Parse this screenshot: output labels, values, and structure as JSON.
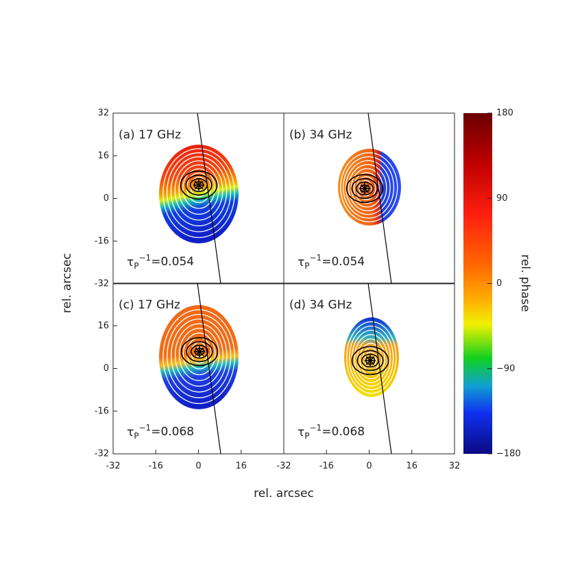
{
  "figure": {
    "xlabel": "rel. arcsec",
    "ylabel": "rel. arcsec"
  },
  "chart_data": [
    {
      "type": "map",
      "panel_label": "(a) 17 GHz",
      "annotation": {
        "symbol": "τ",
        "subscript": "P",
        "superscript": "−1",
        "text": "=0.054"
      },
      "xlim": [
        -32,
        32
      ],
      "ylim": [
        -32,
        32
      ],
      "yticks": [
        -32,
        -16,
        0,
        16,
        32
      ]
    },
    {
      "type": "map",
      "panel_label": "(b) 34 GHz",
      "annotation": {
        "symbol": "τ",
        "subscript": "P",
        "superscript": "−1",
        "text": "=0.054"
      },
      "xlim": [
        -32,
        32
      ],
      "ylim": [
        -32,
        32
      ]
    },
    {
      "type": "map",
      "panel_label": "(c) 17 GHz",
      "annotation": {
        "symbol": "τ",
        "subscript": "P",
        "superscript": "−1",
        "text": "=0.068"
      },
      "xlim": [
        -32,
        32
      ],
      "ylim": [
        -32,
        32
      ],
      "xticks": [
        -32,
        -16,
        0,
        16
      ],
      "yticks": [
        -32,
        -16,
        0,
        16
      ]
    },
    {
      "type": "map",
      "panel_label": "(d) 34 GHz",
      "annotation": {
        "symbol": "τ",
        "subscript": "P",
        "superscript": "−1",
        "text": "=0.068"
      },
      "xlim": [
        -32,
        32
      ],
      "ylim": [
        -32,
        32
      ],
      "xticks": [
        -32,
        -16,
        0,
        16,
        32
      ]
    }
  ],
  "colorbar": {
    "type": "colorbar",
    "label": "rel. phase",
    "clim": [
      -180,
      180
    ],
    "ticks": [
      {
        "value": -180,
        "label": "−180"
      },
      {
        "value": -90,
        "label": "−90"
      },
      0,
      90,
      180
    ]
  }
}
